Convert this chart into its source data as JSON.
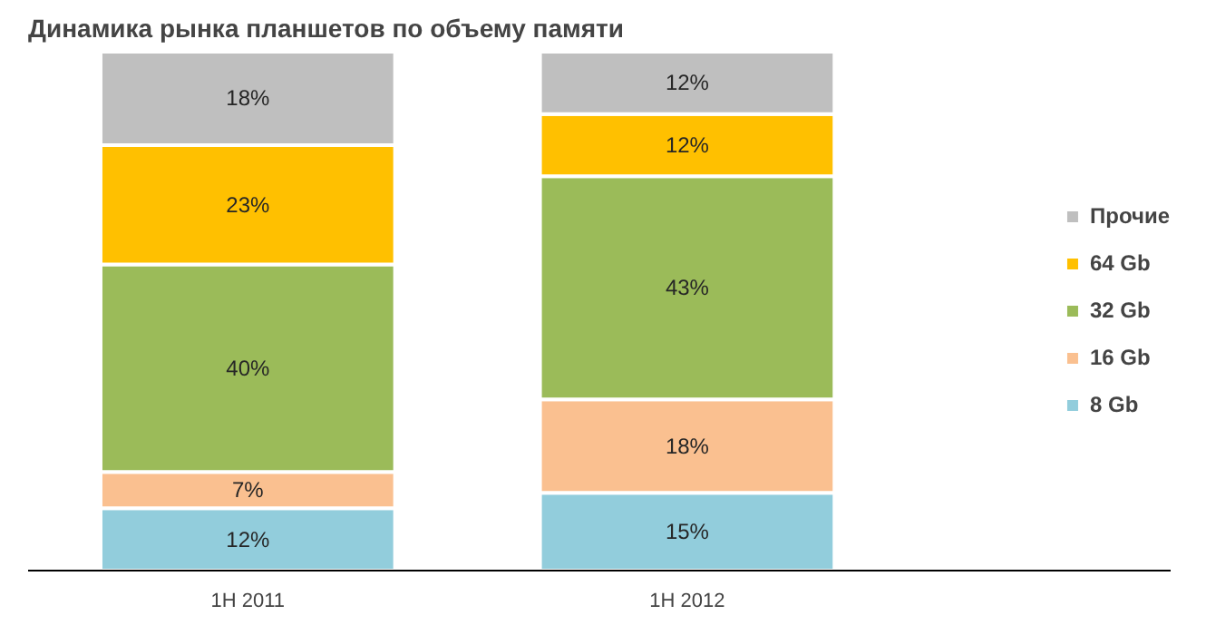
{
  "chart_data": {
    "type": "bar",
    "title": "Динамика рынка планшетов по объему памяти",
    "stacked": true,
    "data_labels": true,
    "legend": "right",
    "grid": false,
    "categories": [
      "1H 2011",
      "1H 2012"
    ],
    "series": [
      {
        "name": "8 Gb",
        "color": "#92cddc",
        "values": [
          12,
          15
        ],
        "value_labels": [
          "12%",
          "15%"
        ]
      },
      {
        "name": "16 Gb",
        "color": "#fac090",
        "values": [
          7,
          18
        ],
        "value_labels": [
          "7%",
          "18%"
        ]
      },
      {
        "name": "32 Gb",
        "color": "#9bbb59",
        "values": [
          40,
          43
        ],
        "value_labels": [
          "40%",
          "43%"
        ]
      },
      {
        "name": "64 Gb",
        "color": "#ffc000",
        "values": [
          23,
          12
        ],
        "value_labels": [
          "23%",
          "12%"
        ]
      },
      {
        "name": "Прочие",
        "color": "#bfbfbf",
        "values": [
          18,
          12
        ],
        "value_labels": [
          "18%",
          "12%"
        ]
      }
    ]
  }
}
